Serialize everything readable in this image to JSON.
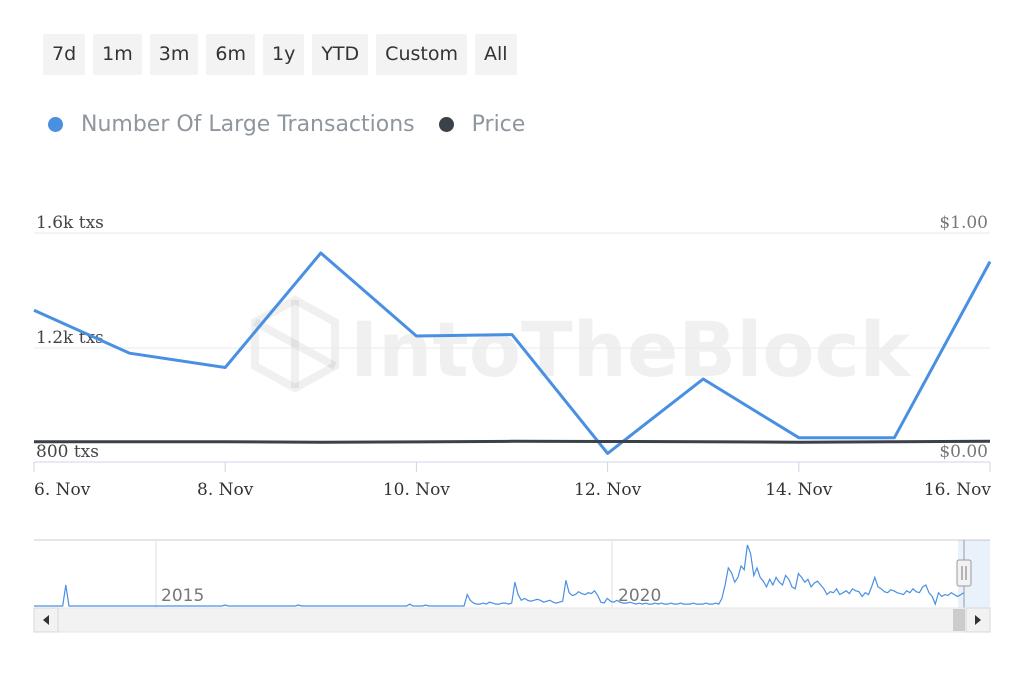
{
  "range_buttons": [
    "7d",
    "1m",
    "3m",
    "6m",
    "1y",
    "YTD",
    "Custom",
    "All"
  ],
  "legend": [
    {
      "label": "Number Of Large Transactions",
      "color": "#4a90e2"
    },
    {
      "label": "Price",
      "color": "#3b4148"
    }
  ],
  "watermark": "IntoTheBlock",
  "chart_data": {
    "type": "line",
    "x": [
      "6. Nov",
      "7. Nov",
      "8. Nov",
      "9. Nov",
      "10. Nov",
      "11. Nov",
      "12. Nov",
      "13. Nov",
      "14. Nov",
      "15. Nov",
      "16. Nov"
    ],
    "x_tick_labels": [
      "6. Nov",
      "8. Nov",
      "10. Nov",
      "12. Nov",
      "14. Nov",
      "16. Nov"
    ],
    "series": [
      {
        "name": "Number Of Large Transactions",
        "axis": "left",
        "color": "#4a90e2",
        "values": [
          1330,
          1180,
          1130,
          1530,
          1240,
          1245,
          830,
          1090,
          885,
          885,
          1500
        ]
      },
      {
        "name": "Price",
        "axis": "right",
        "color": "#3b4148",
        "values": [
          0.01,
          0.01,
          0.01,
          0.008,
          0.009,
          0.012,
          0.011,
          0.01,
          0.008,
          0.01,
          0.012
        ]
      }
    ],
    "y_left": {
      "ticks": [
        "800 txs",
        "1.2k txs",
        "1.6k txs"
      ],
      "range": [
        800,
        1600
      ]
    },
    "y_right": {
      "ticks": [
        "$0.00",
        "$1.00"
      ],
      "range": [
        0,
        1
      ]
    },
    "grid": true,
    "legend_position": "top-left",
    "navigator": {
      "year_labels": [
        "2015",
        "2020"
      ],
      "values": [
        0,
        0,
        0,
        0,
        0,
        0,
        0,
        0,
        0,
        0,
        22,
        0,
        0,
        0,
        0,
        0,
        0,
        0,
        0,
        0,
        0,
        0,
        0,
        0,
        0,
        0,
        0,
        0,
        0,
        0,
        0,
        0,
        0,
        0,
        0,
        0,
        0,
        0,
        0,
        0,
        0,
        0,
        0,
        0,
        0,
        0,
        0,
        0,
        0,
        0,
        0,
        0,
        0,
        0,
        0,
        0,
        0,
        0,
        0,
        0,
        1,
        0,
        0,
        0,
        0,
        0,
        0,
        0,
        0,
        0,
        0,
        0,
        0,
        0,
        0,
        0,
        0,
        0,
        0,
        0,
        0,
        0,
        0,
        1,
        0,
        0,
        0,
        0,
        0,
        0,
        0,
        0,
        0,
        0,
        0,
        0,
        0,
        0,
        0,
        0,
        0,
        0,
        0,
        0,
        0,
        0,
        0,
        0,
        0,
        0,
        0,
        0,
        0,
        0,
        0,
        0,
        0,
        0,
        2,
        0,
        0,
        0,
        0,
        1,
        0,
        0,
        0,
        0,
        0,
        0,
        0,
        0,
        0,
        0,
        0,
        0,
        12,
        6,
        3,
        2,
        2,
        3,
        2,
        4,
        3,
        2,
        2,
        3,
        3,
        2,
        3,
        25,
        12,
        6,
        8,
        6,
        5,
        6,
        7,
        6,
        4,
        5,
        6,
        4,
        3,
        4,
        5,
        27,
        14,
        11,
        12,
        15,
        13,
        12,
        14,
        13,
        16,
        11,
        4,
        3,
        8,
        5,
        4,
        6,
        4,
        3,
        3,
        4,
        3,
        2,
        3,
        2,
        3,
        2,
        2,
        3,
        2,
        3,
        2,
        2,
        3,
        2,
        2,
        3,
        2,
        2,
        2,
        3,
        2,
        2,
        2,
        3,
        2,
        2,
        3,
        2,
        8,
        22,
        40,
        35,
        25,
        30,
        42,
        38,
        64,
        55,
        32,
        40,
        30,
        26,
        20,
        28,
        22,
        30,
        25,
        22,
        32,
        28,
        20,
        18,
        34,
        30,
        25,
        28,
        20,
        24,
        26,
        22,
        18,
        12,
        15,
        14,
        18,
        12,
        14,
        16,
        13,
        18,
        16,
        15,
        10,
        14,
        12,
        20,
        30,
        20,
        18,
        15,
        14,
        17,
        16,
        14,
        13,
        12,
        16,
        14,
        18,
        15,
        14,
        20,
        22,
        14,
        10,
        2,
        14,
        10,
        12,
        11,
        14,
        12,
        10,
        12,
        14
      ]
    }
  }
}
